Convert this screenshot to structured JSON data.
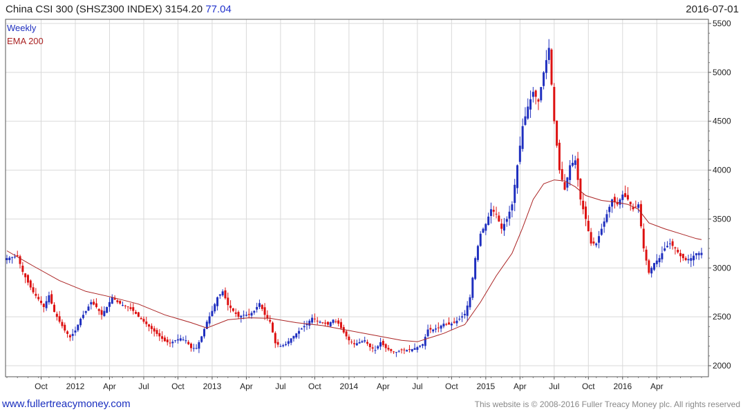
{
  "header": {
    "title": "China CSI 300 (SHSZ300 INDEX) 3154.20",
    "change": "77.04",
    "date": "2016-07-01"
  },
  "footer": {
    "site": "www.fullertreacymoney.com",
    "copyright": "This website is © 2008-2016 Fuller Treacy Money plc. All rights reserved"
  },
  "colors": {
    "up": "#1f2fbf",
    "down": "#dd1111",
    "ema": "#aa2222",
    "grid": "#d9d9d9"
  },
  "chart_data": {
    "type": "line",
    "title": "China CSI 300 (SHSZ300 INDEX)",
    "legend": [
      "Weekly",
      "EMA 200"
    ],
    "legend_position": "top-left",
    "grid": true,
    "y_axis_side": "right",
    "ylim": [
      1950,
      5550
    ],
    "y_ticks": [
      2000,
      2500,
      3000,
      3500,
      4000,
      4500,
      5000,
      5500
    ],
    "x_ticks": [
      "Oct",
      "2012",
      "Apr",
      "Jul",
      "Oct",
      "2013",
      "Apr",
      "Jul",
      "Oct",
      "2014",
      "Apr",
      "Jul",
      "Oct",
      "2015",
      "Apr",
      "Jul",
      "Oct",
      "2016",
      "Apr"
    ],
    "x_tick_weeks": [
      13,
      26,
      39,
      52,
      65,
      78,
      91,
      104,
      117,
      130,
      143,
      156,
      169,
      182,
      195,
      208,
      221,
      234,
      247
    ],
    "series": [
      {
        "name": "Weekly",
        "kind": "close",
        "points": [
          [
            0,
            3100
          ],
          [
            4,
            3120
          ],
          [
            6,
            2960
          ],
          [
            8,
            2850
          ],
          [
            10,
            2750
          ],
          [
            12,
            2680
          ],
          [
            14,
            2600
          ],
          [
            16,
            2720
          ],
          [
            18,
            2550
          ],
          [
            20,
            2450
          ],
          [
            22,
            2360
          ],
          [
            24,
            2290
          ],
          [
            26,
            2360
          ],
          [
            28,
            2480
          ],
          [
            30,
            2560
          ],
          [
            32,
            2650
          ],
          [
            34,
            2600
          ],
          [
            36,
            2520
          ],
          [
            38,
            2600
          ],
          [
            40,
            2700
          ],
          [
            42,
            2650
          ],
          [
            44,
            2620
          ],
          [
            46,
            2600
          ],
          [
            48,
            2560
          ],
          [
            50,
            2500
          ],
          [
            52,
            2450
          ],
          [
            54,
            2400
          ],
          [
            56,
            2350
          ],
          [
            58,
            2300
          ],
          [
            60,
            2250
          ],
          [
            62,
            2230
          ],
          [
            64,
            2260
          ],
          [
            66,
            2280
          ],
          [
            68,
            2260
          ],
          [
            70,
            2180
          ],
          [
            72,
            2180
          ],
          [
            74,
            2300
          ],
          [
            76,
            2450
          ],
          [
            78,
            2560
          ],
          [
            80,
            2700
          ],
          [
            82,
            2760
          ],
          [
            84,
            2620
          ],
          [
            86,
            2560
          ],
          [
            88,
            2500
          ],
          [
            90,
            2520
          ],
          [
            92,
            2520
          ],
          [
            94,
            2560
          ],
          [
            96,
            2640
          ],
          [
            98,
            2520
          ],
          [
            100,
            2450
          ],
          [
            102,
            2230
          ],
          [
            104,
            2200
          ],
          [
            106,
            2220
          ],
          [
            108,
            2280
          ],
          [
            110,
            2330
          ],
          [
            112,
            2380
          ],
          [
            114,
            2430
          ],
          [
            116,
            2490
          ],
          [
            118,
            2460
          ],
          [
            120,
            2440
          ],
          [
            122,
            2420
          ],
          [
            124,
            2470
          ],
          [
            126,
            2430
          ],
          [
            128,
            2340
          ],
          [
            130,
            2260
          ],
          [
            132,
            2220
          ],
          [
            134,
            2240
          ],
          [
            136,
            2260
          ],
          [
            138,
            2190
          ],
          [
            140,
            2160
          ],
          [
            142,
            2240
          ],
          [
            144,
            2180
          ],
          [
            146,
            2150
          ],
          [
            148,
            2140
          ],
          [
            150,
            2160
          ],
          [
            152,
            2160
          ],
          [
            154,
            2170
          ],
          [
            156,
            2190
          ],
          [
            158,
            2220
          ],
          [
            160,
            2370
          ],
          [
            162,
            2370
          ],
          [
            164,
            2390
          ],
          [
            166,
            2430
          ],
          [
            168,
            2420
          ],
          [
            170,
            2440
          ],
          [
            172,
            2480
          ],
          [
            174,
            2530
          ],
          [
            176,
            2700
          ],
          [
            178,
            3100
          ],
          [
            180,
            3350
          ],
          [
            182,
            3450
          ],
          [
            184,
            3600
          ],
          [
            186,
            3550
          ],
          [
            188,
            3400
          ],
          [
            190,
            3500
          ],
          [
            192,
            3650
          ],
          [
            194,
            4050
          ],
          [
            196,
            4450
          ],
          [
            198,
            4650
          ],
          [
            200,
            4800
          ],
          [
            202,
            4700
          ],
          [
            204,
            5000
          ],
          [
            206,
            5250
          ],
          [
            208,
            4500
          ],
          [
            210,
            4000
          ],
          [
            212,
            3800
          ],
          [
            214,
            4050
          ],
          [
            216,
            4100
          ],
          [
            218,
            3700
          ],
          [
            220,
            3500
          ],
          [
            222,
            3250
          ],
          [
            224,
            3250
          ],
          [
            226,
            3400
          ],
          [
            228,
            3550
          ],
          [
            230,
            3700
          ],
          [
            232,
            3650
          ],
          [
            234,
            3750
          ],
          [
            236,
            3700
          ],
          [
            238,
            3600
          ],
          [
            240,
            3650
          ],
          [
            242,
            3200
          ],
          [
            244,
            2950
          ],
          [
            246,
            3050
          ],
          [
            248,
            3100
          ],
          [
            250,
            3200
          ],
          [
            252,
            3250
          ],
          [
            254,
            3200
          ],
          [
            256,
            3120
          ],
          [
            258,
            3080
          ],
          [
            260,
            3100
          ],
          [
            262,
            3150
          ],
          [
            264,
            3154
          ]
        ]
      },
      {
        "name": "EMA 200",
        "kind": "ema",
        "points": [
          [
            0,
            3175
          ],
          [
            10,
            3020
          ],
          [
            20,
            2870
          ],
          [
            30,
            2760
          ],
          [
            40,
            2700
          ],
          [
            50,
            2630
          ],
          [
            60,
            2520
          ],
          [
            70,
            2440
          ],
          [
            76,
            2385
          ],
          [
            84,
            2470
          ],
          [
            92,
            2490
          ],
          [
            100,
            2485
          ],
          [
            110,
            2440
          ],
          [
            120,
            2410
          ],
          [
            130,
            2360
          ],
          [
            140,
            2310
          ],
          [
            150,
            2260
          ],
          [
            156,
            2245
          ],
          [
            166,
            2330
          ],
          [
            172,
            2400
          ],
          [
            174,
            2420
          ],
          [
            180,
            2650
          ],
          [
            186,
            2920
          ],
          [
            192,
            3150
          ],
          [
            196,
            3410
          ],
          [
            200,
            3700
          ],
          [
            204,
            3860
          ],
          [
            208,
            3900
          ],
          [
            212,
            3890
          ],
          [
            216,
            3830
          ],
          [
            220,
            3740
          ],
          [
            226,
            3690
          ],
          [
            232,
            3670
          ],
          [
            236,
            3650
          ],
          [
            240,
            3600
          ],
          [
            244,
            3460
          ],
          [
            250,
            3400
          ],
          [
            256,
            3350
          ],
          [
            262,
            3300
          ],
          [
            264,
            3290
          ]
        ]
      }
    ]
  }
}
